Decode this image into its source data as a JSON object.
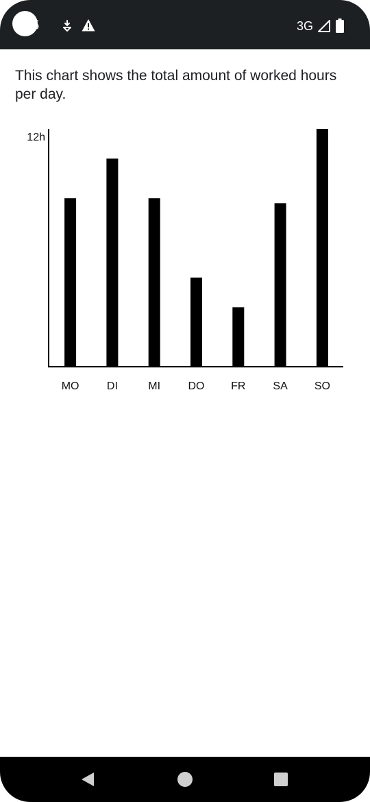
{
  "status_bar": {
    "time": "45",
    "network": "3G",
    "icons": [
      "camera-cutout",
      "download-notification-icon",
      "warning-icon",
      "signal-icon",
      "battery-icon"
    ],
    "background": "#1d2022"
  },
  "description": "This chart shows the total amount of worked hours per day.",
  "chart_data": {
    "type": "bar",
    "categories": [
      "MO",
      "DI",
      "MI",
      "DO",
      "FR",
      "SA",
      "SO"
    ],
    "values": [
      8.5,
      10.5,
      8.5,
      4.5,
      3.0,
      8.25,
      12.0
    ],
    "ylabel": "",
    "ytick_labels": [
      {
        "value": 12,
        "label": "12h"
      }
    ],
    "ylim": [
      0,
      12
    ],
    "bar_color": "#000000",
    "grid": false
  },
  "nav_bar": {
    "icons": [
      "back-icon",
      "home-icon",
      "recents-icon"
    ],
    "background": "#000000"
  }
}
